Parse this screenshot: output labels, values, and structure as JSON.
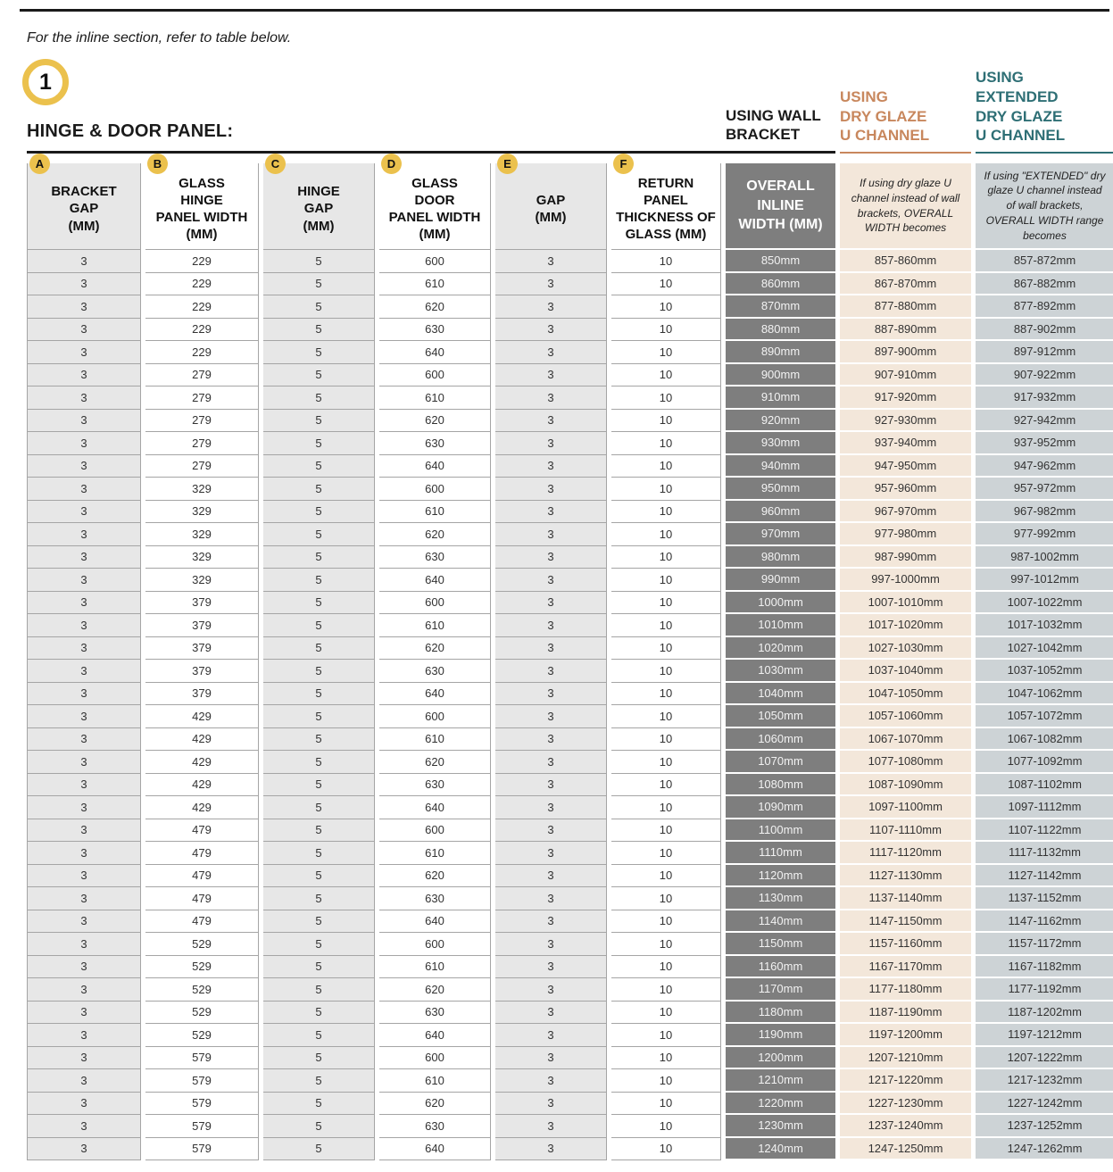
{
  "page": {
    "intro_note": "For the inline section, refer to table below.",
    "step_number": "1",
    "section_title": "HINGE & DOOR PANEL:"
  },
  "colors": {
    "accent_yellow": "#EBC14D",
    "heading_orange": "#C8875D",
    "heading_teal": "#2E6F75",
    "wall_col_bg": "#7E7E7E",
    "dry_col_bg": "#F3E7DA",
    "ext_col_bg": "#CDD3D6",
    "shade_cell_bg": "#E7E7E7"
  },
  "main_table": {
    "columns": [
      {
        "letter": "A",
        "label": "BRACKET\nGAP\n(MM)"
      },
      {
        "letter": "B",
        "label": "GLASS\nHINGE\nPANEL WIDTH\n(MM)"
      },
      {
        "letter": "C",
        "label": "HINGE\nGAP\n(MM)"
      },
      {
        "letter": "D",
        "label": "GLASS\nDOOR\nPANEL WIDTH\n(MM)"
      },
      {
        "letter": "E",
        "label": "GAP\n(MM)"
      },
      {
        "letter": "F",
        "label": "RETURN\nPANEL\nTHICKNESS OF\nGLASS (MM)"
      }
    ]
  },
  "width_groups": {
    "wall_bracket": {
      "heading": "USING WALL\nBRACKET",
      "subheading": "OVERALL\nINLINE\nWIDTH (MM)"
    },
    "dry_glaze": {
      "heading": "USING\nDRY GLAZE\nU CHANNEL",
      "subheading": "If using dry glaze U channel instead of wall brackets, OVERALL WIDTH becomes"
    },
    "extended_dry_glaze": {
      "heading": "USING\nEXTENDED\nDRY GLAZE\nU CHANNEL",
      "subheading": "If using \"EXTENDED\" dry glaze U channel instead of wall brackets, OVERALL WIDTH range becomes"
    }
  },
  "rows": [
    [
      "3",
      "229",
      "5",
      "600",
      "3",
      "10",
      "850mm",
      "857-860mm",
      "857-872mm"
    ],
    [
      "3",
      "229",
      "5",
      "610",
      "3",
      "10",
      "860mm",
      "867-870mm",
      "867-882mm"
    ],
    [
      "3",
      "229",
      "5",
      "620",
      "3",
      "10",
      "870mm",
      "877-880mm",
      "877-892mm"
    ],
    [
      "3",
      "229",
      "5",
      "630",
      "3",
      "10",
      "880mm",
      "887-890mm",
      "887-902mm"
    ],
    [
      "3",
      "229",
      "5",
      "640",
      "3",
      "10",
      "890mm",
      "897-900mm",
      "897-912mm"
    ],
    [
      "3",
      "279",
      "5",
      "600",
      "3",
      "10",
      "900mm",
      "907-910mm",
      "907-922mm"
    ],
    [
      "3",
      "279",
      "5",
      "610",
      "3",
      "10",
      "910mm",
      "917-920mm",
      "917-932mm"
    ],
    [
      "3",
      "279",
      "5",
      "620",
      "3",
      "10",
      "920mm",
      "927-930mm",
      "927-942mm"
    ],
    [
      "3",
      "279",
      "5",
      "630",
      "3",
      "10",
      "930mm",
      "937-940mm",
      "937-952mm"
    ],
    [
      "3",
      "279",
      "5",
      "640",
      "3",
      "10",
      "940mm",
      "947-950mm",
      "947-962mm"
    ],
    [
      "3",
      "329",
      "5",
      "600",
      "3",
      "10",
      "950mm",
      "957-960mm",
      "957-972mm"
    ],
    [
      "3",
      "329",
      "5",
      "610",
      "3",
      "10",
      "960mm",
      "967-970mm",
      "967-982mm"
    ],
    [
      "3",
      "329",
      "5",
      "620",
      "3",
      "10",
      "970mm",
      "977-980mm",
      "977-992mm"
    ],
    [
      "3",
      "329",
      "5",
      "630",
      "3",
      "10",
      "980mm",
      "987-990mm",
      "987-1002mm"
    ],
    [
      "3",
      "329",
      "5",
      "640",
      "3",
      "10",
      "990mm",
      "997-1000mm",
      "997-1012mm"
    ],
    [
      "3",
      "379",
      "5",
      "600",
      "3",
      "10",
      "1000mm",
      "1007-1010mm",
      "1007-1022mm"
    ],
    [
      "3",
      "379",
      "5",
      "610",
      "3",
      "10",
      "1010mm",
      "1017-1020mm",
      "1017-1032mm"
    ],
    [
      "3",
      "379",
      "5",
      "620",
      "3",
      "10",
      "1020mm",
      "1027-1030mm",
      "1027-1042mm"
    ],
    [
      "3",
      "379",
      "5",
      "630",
      "3",
      "10",
      "1030mm",
      "1037-1040mm",
      "1037-1052mm"
    ],
    [
      "3",
      "379",
      "5",
      "640",
      "3",
      "10",
      "1040mm",
      "1047-1050mm",
      "1047-1062mm"
    ],
    [
      "3",
      "429",
      "5",
      "600",
      "3",
      "10",
      "1050mm",
      "1057-1060mm",
      "1057-1072mm"
    ],
    [
      "3",
      "429",
      "5",
      "610",
      "3",
      "10",
      "1060mm",
      "1067-1070mm",
      "1067-1082mm"
    ],
    [
      "3",
      "429",
      "5",
      "620",
      "3",
      "10",
      "1070mm",
      "1077-1080mm",
      "1077-1092mm"
    ],
    [
      "3",
      "429",
      "5",
      "630",
      "3",
      "10",
      "1080mm",
      "1087-1090mm",
      "1087-1102mm"
    ],
    [
      "3",
      "429",
      "5",
      "640",
      "3",
      "10",
      "1090mm",
      "1097-1100mm",
      "1097-1112mm"
    ],
    [
      "3",
      "479",
      "5",
      "600",
      "3",
      "10",
      "1100mm",
      "1107-1110mm",
      "1107-1122mm"
    ],
    [
      "3",
      "479",
      "5",
      "610",
      "3",
      "10",
      "1110mm",
      "1117-1120mm",
      "1117-1132mm"
    ],
    [
      "3",
      "479",
      "5",
      "620",
      "3",
      "10",
      "1120mm",
      "1127-1130mm",
      "1127-1142mm"
    ],
    [
      "3",
      "479",
      "5",
      "630",
      "3",
      "10",
      "1130mm",
      "1137-1140mm",
      "1137-1152mm"
    ],
    [
      "3",
      "479",
      "5",
      "640",
      "3",
      "10",
      "1140mm",
      "1147-1150mm",
      "1147-1162mm"
    ],
    [
      "3",
      "529",
      "5",
      "600",
      "3",
      "10",
      "1150mm",
      "1157-1160mm",
      "1157-1172mm"
    ],
    [
      "3",
      "529",
      "5",
      "610",
      "3",
      "10",
      "1160mm",
      "1167-1170mm",
      "1167-1182mm"
    ],
    [
      "3",
      "529",
      "5",
      "620",
      "3",
      "10",
      "1170mm",
      "1177-1180mm",
      "1177-1192mm"
    ],
    [
      "3",
      "529",
      "5",
      "630",
      "3",
      "10",
      "1180mm",
      "1187-1190mm",
      "1187-1202mm"
    ],
    [
      "3",
      "529",
      "5",
      "640",
      "3",
      "10",
      "1190mm",
      "1197-1200mm",
      "1197-1212mm"
    ],
    [
      "3",
      "579",
      "5",
      "600",
      "3",
      "10",
      "1200mm",
      "1207-1210mm",
      "1207-1222mm"
    ],
    [
      "3",
      "579",
      "5",
      "610",
      "3",
      "10",
      "1210mm",
      "1217-1220mm",
      "1217-1232mm"
    ],
    [
      "3",
      "579",
      "5",
      "620",
      "3",
      "10",
      "1220mm",
      "1227-1230mm",
      "1227-1242mm"
    ],
    [
      "3",
      "579",
      "5",
      "630",
      "3",
      "10",
      "1230mm",
      "1237-1240mm",
      "1237-1252mm"
    ],
    [
      "3",
      "579",
      "5",
      "640",
      "3",
      "10",
      "1240mm",
      "1247-1250mm",
      "1247-1262mm"
    ]
  ]
}
